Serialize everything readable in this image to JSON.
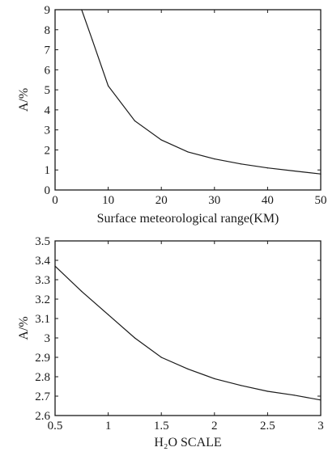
{
  "chart_data": [
    {
      "type": "line",
      "xlabel": "Surface meteorological range(KM)",
      "ylabel": "A/%",
      "xlim": [
        0,
        50
      ],
      "ylim": [
        0,
        9
      ],
      "xticks": [
        0,
        10,
        20,
        30,
        40,
        50
      ],
      "yticks": [
        0,
        1,
        2,
        3,
        4,
        5,
        6,
        7,
        8,
        9
      ],
      "grid": false,
      "series": [
        {
          "x": [
            5,
            7,
            10,
            15,
            20,
            25,
            30,
            35,
            40,
            45,
            50
          ],
          "y": [
            9.0,
            7.5,
            5.2,
            3.45,
            2.5,
            1.9,
            1.55,
            1.3,
            1.1,
            0.95,
            0.8
          ]
        }
      ]
    },
    {
      "type": "line",
      "xlabel": "H₂O SCALE",
      "ylabel": "A/%",
      "xlim": [
        0.5,
        3
      ],
      "ylim": [
        2.6,
        3.5
      ],
      "xticks": [
        0.5,
        1,
        1.5,
        2,
        2.5,
        3
      ],
      "yticks": [
        2.6,
        2.7,
        2.8,
        2.9,
        3,
        3.1,
        3.2,
        3.3,
        3.4,
        3.5
      ],
      "grid": false,
      "series": [
        {
          "x": [
            0.5,
            0.75,
            1.0,
            1.25,
            1.5,
            1.75,
            2.0,
            2.25,
            2.5,
            2.75,
            3.0
          ],
          "y": [
            3.37,
            3.24,
            3.12,
            3.0,
            2.9,
            2.84,
            2.79,
            2.755,
            2.725,
            2.705,
            2.68
          ]
        }
      ]
    }
  ]
}
